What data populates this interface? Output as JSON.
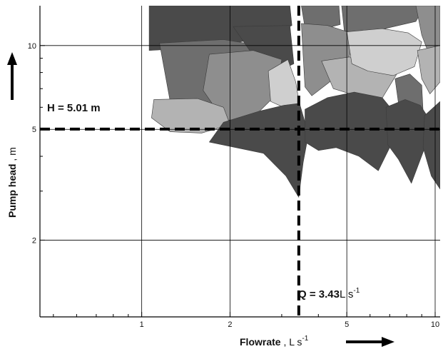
{
  "chart_data": {
    "type": "scatter",
    "title": "",
    "scale": "log-log",
    "grid": true,
    "legend": "none",
    "x_axis": {
      "label_main": "Flowrate",
      "label_sep": " , ",
      "label_unit": "L s",
      "label_exp": "-1",
      "range": [
        0.45,
        10.4
      ],
      "ticks": [
        1,
        2,
        5,
        10
      ],
      "tick_labels": [
        "1",
        "2",
        "5",
        "10"
      ]
    },
    "y_axis": {
      "label_main": "Pump head",
      "label_sep": " , ",
      "label_unit": "m",
      "range": [
        1.06,
        13.9
      ],
      "ticks": [
        2,
        5,
        10
      ],
      "tick_labels": [
        "2",
        "5",
        "10"
      ]
    },
    "operating_point": {
      "x": 3.43,
      "y": 5.01
    },
    "annotations": {
      "head_label": "H = 5.01 m",
      "flow_label_value": "Q = 3.43",
      "flow_label_unit": "L s",
      "flow_label_exp": "-1"
    },
    "patch_colors": [
      "#4a4a4a",
      "#6e6e6e",
      "#8e8e8e",
      "#b3b3b3",
      "#cfcfcf"
    ],
    "patches": [
      {
        "shade": 0,
        "pts": [
          [
            1.06,
            13.9
          ],
          [
            3.2,
            13.9
          ],
          [
            3.25,
            11.8
          ],
          [
            2.7,
            10.8
          ],
          [
            1.8,
            9.9
          ],
          [
            1.06,
            9.6
          ]
        ]
      },
      {
        "shade": 1,
        "pts": [
          [
            1.15,
            10.2
          ],
          [
            1.9,
            10.5
          ],
          [
            2.7,
            9.9
          ],
          [
            2.5,
            7.2
          ],
          [
            2.1,
            6.3
          ],
          [
            1.7,
            6.2
          ],
          [
            1.25,
            6.3
          ]
        ]
      },
      {
        "shade": 0,
        "pts": [
          [
            2.05,
            11.7
          ],
          [
            3.2,
            11.8
          ],
          [
            3.3,
            8.6
          ],
          [
            2.85,
            8.0
          ],
          [
            2.45,
            8.9
          ]
        ]
      },
      {
        "shade": 2,
        "pts": [
          [
            1.7,
            9.3
          ],
          [
            2.4,
            9.6
          ],
          [
            3.0,
            8.9
          ],
          [
            2.85,
            6.6
          ],
          [
            2.35,
            5.4
          ],
          [
            1.9,
            5.4
          ],
          [
            1.62,
            6.9
          ]
        ]
      },
      {
        "shade": 4,
        "pts": [
          [
            2.7,
            8.1
          ],
          [
            3.15,
            8.9
          ],
          [
            3.35,
            7.4
          ],
          [
            3.45,
            6.1
          ],
          [
            3.15,
            5.9
          ],
          [
            2.75,
            6.3
          ]
        ]
      },
      {
        "shade": 3,
        "pts": [
          [
            1.1,
            6.4
          ],
          [
            1.55,
            6.45
          ],
          [
            1.9,
            6.0
          ],
          [
            2.0,
            5.2
          ],
          [
            1.6,
            4.85
          ],
          [
            1.25,
            4.9
          ],
          [
            1.08,
            5.5
          ]
        ]
      },
      {
        "shade": 0,
        "pts": [
          [
            1.9,
            5.3
          ],
          [
            2.5,
            5.8
          ],
          [
            3.05,
            6.1
          ],
          [
            3.45,
            6.2
          ],
          [
            3.7,
            4.8
          ],
          [
            3.55,
            3.8
          ],
          [
            3.43,
            2.85
          ],
          [
            3.1,
            3.4
          ],
          [
            2.6,
            4.1
          ],
          [
            1.7,
            4.5
          ]
        ]
      },
      {
        "shade": 1,
        "pts": [
          [
            3.5,
            13.9
          ],
          [
            4.7,
            13.9
          ],
          [
            4.75,
            11.9
          ],
          [
            4.2,
            11.5
          ],
          [
            3.6,
            11.6
          ]
        ]
      },
      {
        "shade": 2,
        "pts": [
          [
            3.5,
            12.0
          ],
          [
            4.3,
            11.8
          ],
          [
            5.3,
            11.0
          ],
          [
            5.0,
            8.3
          ],
          [
            4.3,
            7.3
          ],
          [
            3.8,
            6.6
          ],
          [
            3.6,
            7.1
          ]
        ]
      },
      {
        "shade": 3,
        "pts": [
          [
            4.1,
            8.8
          ],
          [
            5.1,
            9.1
          ],
          [
            6.5,
            8.8
          ],
          [
            7.4,
            7.9
          ],
          [
            6.5,
            6.3
          ],
          [
            5.4,
            6.6
          ],
          [
            4.5,
            7.0
          ]
        ]
      },
      {
        "shade": 0,
        "pts": [
          [
            3.6,
            5.9
          ],
          [
            4.3,
            6.5
          ],
          [
            5.3,
            6.8
          ],
          [
            6.6,
            6.5
          ],
          [
            7.4,
            5.6
          ],
          [
            7.0,
            4.3
          ],
          [
            6.4,
            3.55
          ],
          [
            5.5,
            4.0
          ],
          [
            4.6,
            4.3
          ],
          [
            4.0,
            4.2
          ],
          [
            3.6,
            4.5
          ]
        ]
      },
      {
        "shade": 1,
        "pts": [
          [
            4.8,
            13.9
          ],
          [
            9.2,
            13.9
          ],
          [
            8.6,
            12.2
          ],
          [
            7.0,
            11.6
          ],
          [
            5.8,
            11.0
          ],
          [
            4.9,
            11.3
          ]
        ]
      },
      {
        "shade": 4,
        "pts": [
          [
            5.0,
            11.2
          ],
          [
            6.6,
            11.5
          ],
          [
            8.1,
            11.1
          ],
          [
            9.0,
            10.3
          ],
          [
            8.5,
            8.4
          ],
          [
            7.2,
            7.8
          ],
          [
            5.9,
            8.1
          ],
          [
            5.2,
            8.6
          ]
        ]
      },
      {
        "shade": 2,
        "pts": [
          [
            8.6,
            13.9
          ],
          [
            10.4,
            13.9
          ],
          [
            10.4,
            8.0
          ],
          [
            9.6,
            9.1
          ],
          [
            9.0,
            10.9
          ]
        ]
      },
      {
        "shade": 3,
        "pts": [
          [
            8.7,
            9.6
          ],
          [
            10.4,
            10.0
          ],
          [
            10.4,
            7.4
          ],
          [
            9.6,
            6.7
          ],
          [
            9.0,
            7.6
          ]
        ]
      },
      {
        "shade": 1,
        "pts": [
          [
            7.3,
            7.6
          ],
          [
            8.2,
            7.9
          ],
          [
            9.0,
            7.2
          ],
          [
            9.1,
            5.8
          ],
          [
            8.4,
            5.3
          ],
          [
            7.6,
            5.6
          ]
        ]
      },
      {
        "shade": 0,
        "pts": [
          [
            6.8,
            6.0
          ],
          [
            7.9,
            6.4
          ],
          [
            8.9,
            6.1
          ],
          [
            9.7,
            5.3
          ],
          [
            9.3,
            4.4
          ],
          [
            8.3,
            3.2
          ],
          [
            7.5,
            3.9
          ],
          [
            6.9,
            4.4
          ]
        ]
      },
      {
        "shade": 0,
        "pts": [
          [
            9.2,
            5.6
          ],
          [
            10.4,
            6.3
          ],
          [
            10.4,
            3.05
          ],
          [
            9.7,
            3.4
          ],
          [
            9.1,
            4.3
          ]
        ]
      }
    ]
  }
}
